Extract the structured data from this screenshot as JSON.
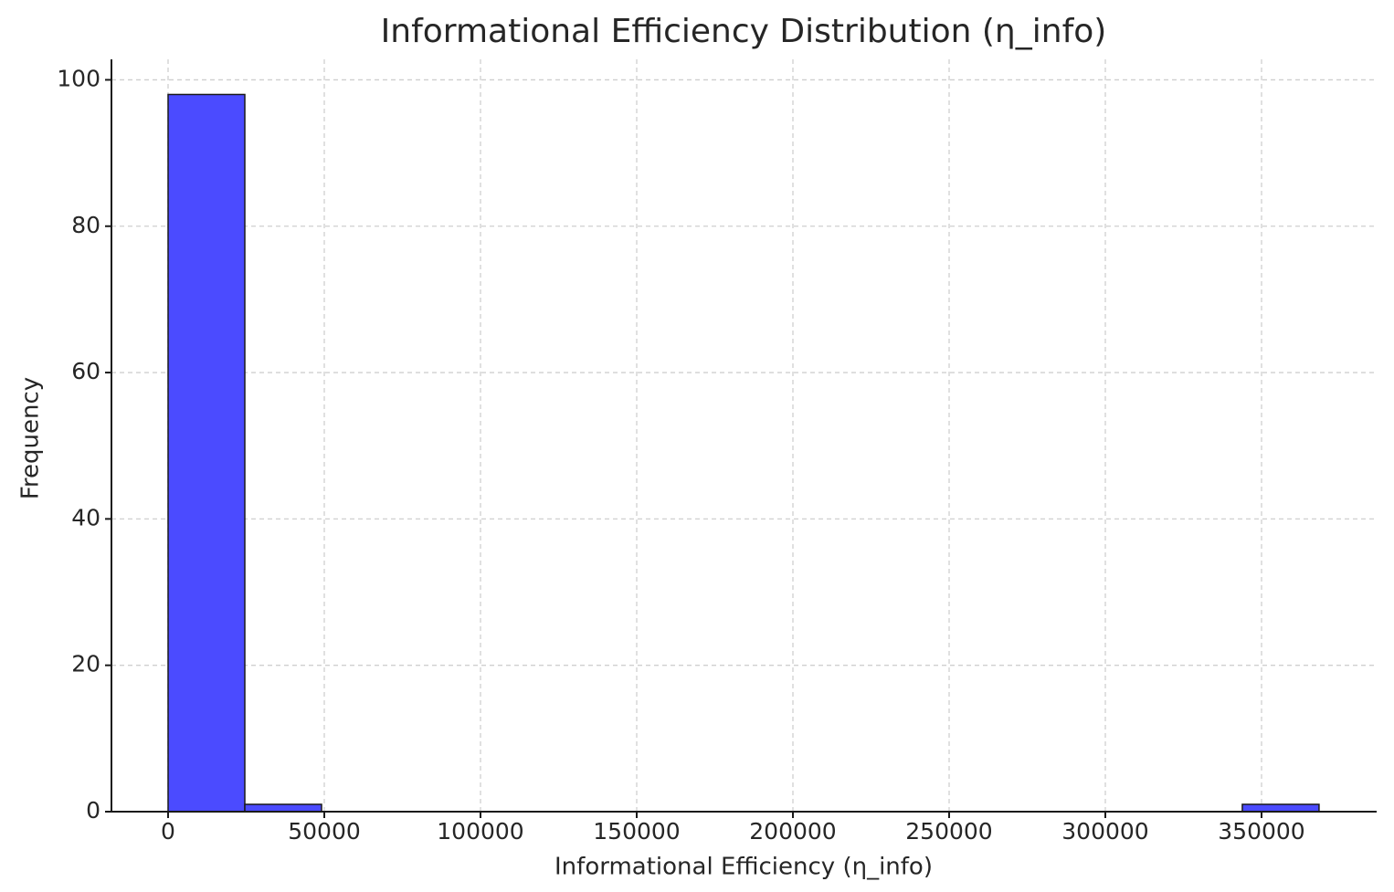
{
  "chart_data": {
    "type": "histogram",
    "title": "Informational Efficiency Distribution (η_info)",
    "x_label": "Informational Efficiency (η_info)",
    "y_label": "Frequency",
    "bins": [
      0,
      24560,
      49120,
      73680,
      98240,
      122800,
      147360,
      171920,
      196480,
      221040,
      245600,
      270160,
      294720,
      319280,
      343840,
      368400
    ],
    "counts": [
      98,
      1,
      0,
      0,
      0,
      0,
      0,
      0,
      0,
      0,
      0,
      0,
      0,
      0,
      1
    ],
    "color": "#4b4bff",
    "edgecolor": "#1a1a1a",
    "xlim": [
      -18130,
      386840
    ],
    "ylim": [
      0,
      102.8
    ],
    "xticks": [
      0,
      50000,
      100000,
      150000,
      200000,
      250000,
      300000,
      350000
    ],
    "yticks": [
      0,
      20,
      40,
      60,
      80,
      100
    ],
    "grid": true
  }
}
